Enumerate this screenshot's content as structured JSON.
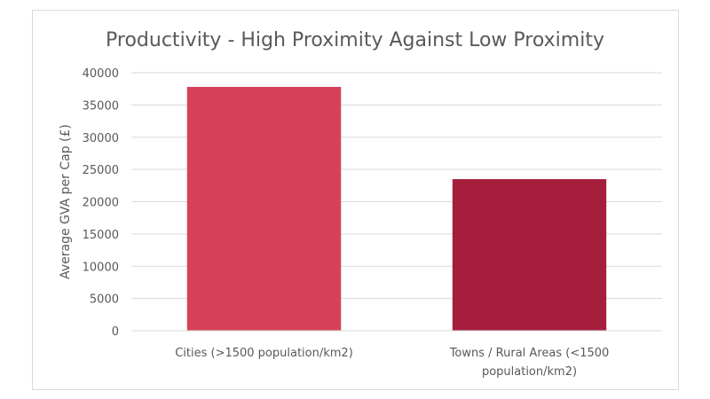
{
  "chart_data": {
    "type": "bar",
    "title": "Productivity - High Proximity Against Low Proximity",
    "xlabel": "",
    "ylabel": "Average GVA per Cap (£)",
    "categories": [
      "Cities (>1500 population/km2)",
      "Towns / Rural Areas (<1500 population/km2)"
    ],
    "category_lines": [
      [
        "Cities (>1500 population/km2)"
      ],
      [
        "Towns / Rural Areas (<1500",
        "population/km2)"
      ]
    ],
    "values": [
      37800,
      23500
    ],
    "bar_colors": [
      "#d64157",
      "#a51f3d"
    ],
    "ylim": [
      0,
      40000
    ],
    "yticks": [
      0,
      5000,
      10000,
      15000,
      20000,
      25000,
      30000,
      35000,
      40000
    ],
    "grid": true,
    "legend": "none"
  }
}
